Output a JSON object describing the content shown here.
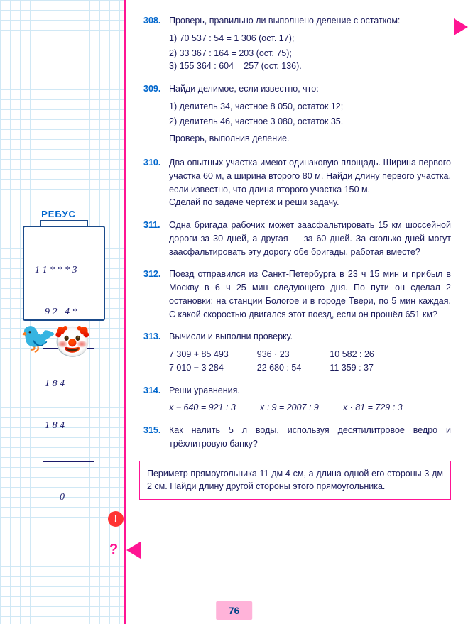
{
  "sidebar": {
    "rebus_title": "РЕБУС",
    "rebus_lines": [
      "  1 1 * * * 3",
      "      9 2   4 *",
      "      1 8 4",
      "      1 8 4",
      "            0"
    ]
  },
  "problems": {
    "p308": {
      "num": "308.",
      "text": "Проверь, правильно ли выполнено деление с остатком:",
      "items": [
        "1)  70 537 : 54 = 1 306  (ост.  17);",
        "2)  33 367 : 164 = 203  (ост.  75);",
        "3)  155 364 : 604 = 257  (ост.  136)."
      ]
    },
    "p309": {
      "num": "309.",
      "text": "Найди делимое, если известно, что:",
      "items": [
        "1) делитель 34, частное 8 050, остаток 12;",
        "2) делитель 46, частное 3 080, остаток 35."
      ],
      "footer": "Проверь, выполнив деление."
    },
    "p310": {
      "num": "310.",
      "text": "Два опытных участка имеют одинаковую площадь. Ширина первого участка 60 м, а ширина второго 80 м. Найди длину первого участка, если известно, что длина второго участка 150 м.",
      "footer": "Сделай по задаче чертёж и реши задачу."
    },
    "p311": {
      "num": "311.",
      "text": "Одна бригада рабочих может заасфальтировать 15 км шоссейной дороги за 30 дней, а другая — за 60 дней. За сколько дней могут заасфальтировать эту дорогу обе бригады, работая вместе?"
    },
    "p312": {
      "num": "312.",
      "text": "Поезд отправился из Санкт-Петербурга в 23 ч 15 мин и прибыл в Москву в 6 ч 25 мин следующего дня. По пути он сделал 2 остановки: на станции Бологое и в городе Твери, по 5 мин каждая. С какой скоростью двигался этот поезд, если он прошёл 651 км?"
    },
    "p313": {
      "num": "313.",
      "text": "Вычисли и выполни проверку.",
      "cols": [
        [
          "7 309 + 85 493",
          "7 010 − 3 284"
        ],
        [
          "936 · 23",
          "22 680 : 54"
        ],
        [
          "10 582 : 26",
          "11 359 : 37"
        ]
      ]
    },
    "p314": {
      "num": "314.",
      "text": "Реши уравнения.",
      "eqs": [
        "x − 640 = 921 : 3",
        "x : 9 = 2007 : 9",
        "x · 81 = 729 : 3"
      ]
    },
    "p315": {
      "num": "315.",
      "text": "Как налить 5 л воды, используя десятилитровое ведро и трёхлитровую банку?"
    },
    "bottom": "Периметр прямоугольника 11 дм 4 см, а длина одной его стороны 3 дм 2 см. Найди длину другой стороны этого прямоугольника."
  },
  "page_number": "76",
  "icons": {
    "warning": "!",
    "question": "?",
    "jester": "🤡",
    "bird": "🐦"
  }
}
